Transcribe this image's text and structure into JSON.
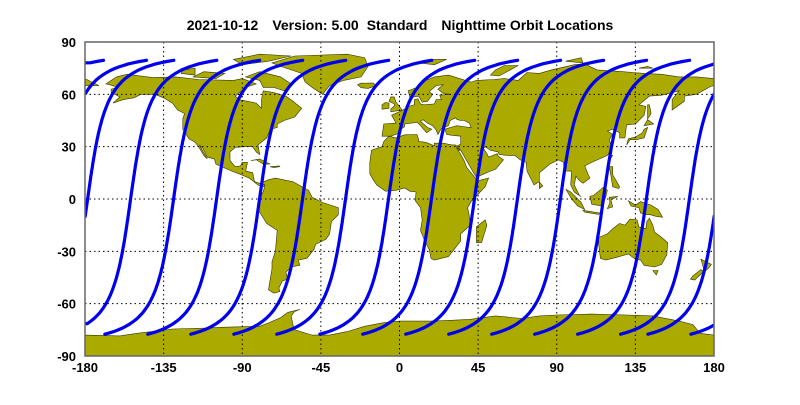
{
  "header": {
    "date": "2021-10-12",
    "version": "Version: 5.00",
    "mode": "Standard",
    "title": "Nighttime Orbit Locations"
  },
  "chart_data": {
    "type": "map",
    "projection": "equirectangular",
    "xlim": [
      -180,
      180
    ],
    "ylim": [
      -90,
      90
    ],
    "xticks": [
      "-180",
      "-135",
      "-90",
      "-45",
      "0",
      "45",
      "90",
      "135",
      "180"
    ],
    "yticks": [
      "90",
      "60",
      "30",
      "0",
      "-30",
      "-60",
      "-90"
    ],
    "grid": true,
    "orbit_tracks": {
      "description_units": "degrees longitude of equator crossing",
      "equator_crossing_lon": [
        -178.5,
        -153.9,
        -129.3,
        -104.7,
        -80.1,
        -55.5,
        -30.9,
        -6.3,
        18.3,
        42.9,
        67.5,
        92.1,
        116.7,
        141.3,
        165.9
      ],
      "lat_range": [
        -77.5,
        79.5
      ]
    },
    "colors": {
      "land": "#aaaa00",
      "coast": "#333300",
      "orbit": "#0000ee",
      "grid": "#000000"
    }
  }
}
